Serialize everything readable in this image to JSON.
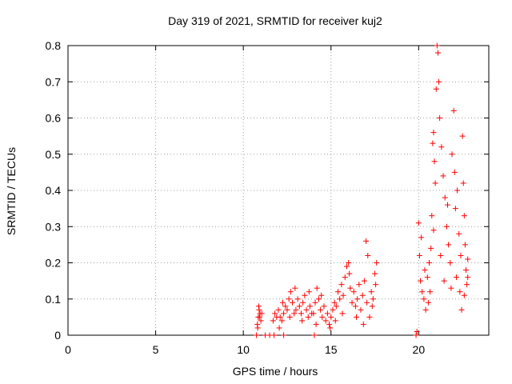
{
  "chart_data": {
    "type": "scatter",
    "title": "Day 319 of 2021, SRMTID for receiver kuj2",
    "xlabel": "GPS time / hours",
    "ylabel": "SRMTID / TECUs",
    "xlim": [
      0,
      24
    ],
    "ylim": [
      0,
      0.8
    ],
    "xticks": [
      0,
      5,
      10,
      15,
      20
    ],
    "yticks": [
      0,
      0.1,
      0.2,
      0.3,
      0.4,
      0.5,
      0.6,
      0.7,
      0.8
    ],
    "xtick_labels": [
      "0",
      "5",
      "10",
      "15",
      "20"
    ],
    "ytick_labels": [
      "0",
      "0.1",
      "0.2",
      "0.3",
      "0.4",
      "0.5",
      "0.6",
      "0.7",
      "0.8"
    ],
    "grid": true,
    "marker": "+",
    "color": "#ff0000",
    "series": [
      {
        "name": "kuj2",
        "points": [
          [
            10.75,
            0
          ],
          [
            11.25,
            0
          ],
          [
            11.5,
            0
          ],
          [
            11.75,
            0
          ],
          [
            12.3,
            0
          ],
          [
            14.05,
            0
          ],
          [
            19.85,
            0
          ],
          [
            10.8,
            0.03
          ],
          [
            10.85,
            0.05
          ],
          [
            10.9,
            0.07
          ],
          [
            10.95,
            0.06
          ],
          [
            11.0,
            0.04
          ],
          [
            10.82,
            0.02
          ],
          [
            10.88,
            0.08
          ],
          [
            10.92,
            0.05
          ],
          [
            11.05,
            0.06
          ],
          [
            11.7,
            0.04
          ],
          [
            11.8,
            0.06
          ],
          [
            11.9,
            0.05
          ],
          [
            12.0,
            0.07
          ],
          [
            12.1,
            0.05
          ],
          [
            12.2,
            0.04
          ],
          [
            12.3,
            0.06
          ],
          [
            12.4,
            0.08
          ],
          [
            12.5,
            0.07
          ],
          [
            12.6,
            0.1
          ],
          [
            12.7,
            0.12
          ],
          [
            12.8,
            0.09
          ],
          [
            12.9,
            0.06
          ],
          [
            13.0,
            0.07
          ],
          [
            13.1,
            0.1
          ],
          [
            13.2,
            0.08
          ],
          [
            13.3,
            0.06
          ],
          [
            13.4,
            0.09
          ],
          [
            13.5,
            0.11
          ],
          [
            13.6,
            0.07
          ],
          [
            13.7,
            0.05
          ],
          [
            13.8,
            0.08
          ],
          [
            13.9,
            0.06
          ],
          [
            12.05,
            0.02
          ],
          [
            12.25,
            0.09
          ],
          [
            12.65,
            0.05
          ],
          [
            12.95,
            0.13
          ],
          [
            13.35,
            0.04
          ],
          [
            13.75,
            0.12
          ],
          [
            14.0,
            0.06
          ],
          [
            14.1,
            0.09
          ],
          [
            14.2,
            0.13
          ],
          [
            14.3,
            0.1
          ],
          [
            14.4,
            0.07
          ],
          [
            14.5,
            0.05
          ],
          [
            14.6,
            0.08
          ],
          [
            14.7,
            0.04
          ],
          [
            14.8,
            0.06
          ],
          [
            14.9,
            0.03
          ],
          [
            15.0,
            0.05
          ],
          [
            15.1,
            0.07
          ],
          [
            15.2,
            0.09
          ],
          [
            15.3,
            0.08
          ],
          [
            15.4,
            0.12
          ],
          [
            15.5,
            0.1
          ],
          [
            15.6,
            0.14
          ],
          [
            15.7,
            0.11
          ],
          [
            15.8,
            0.16
          ],
          [
            15.9,
            0.19
          ],
          [
            16.0,
            0.2
          ],
          [
            16.1,
            0.13
          ],
          [
            16.2,
            0.09
          ],
          [
            16.3,
            0.12
          ],
          [
            16.4,
            0.08
          ],
          [
            16.5,
            0.1
          ],
          [
            16.6,
            0.14
          ],
          [
            16.7,
            0.07
          ],
          [
            16.8,
            0.11
          ],
          [
            16.9,
            0.15
          ],
          [
            17.0,
            0.26
          ],
          [
            17.1,
            0.22
          ],
          [
            17.2,
            0.05
          ],
          [
            17.3,
            0.12
          ],
          [
            17.4,
            0.1
          ],
          [
            17.5,
            0.17
          ],
          [
            17.6,
            0.2
          ],
          [
            14.15,
            0.03
          ],
          [
            14.45,
            0.11
          ],
          [
            14.95,
            0.02
          ],
          [
            15.25,
            0.04
          ],
          [
            15.65,
            0.06
          ],
          [
            16.05,
            0.17
          ],
          [
            16.45,
            0.05
          ],
          [
            16.85,
            0.03
          ],
          [
            17.05,
            0.09
          ],
          [
            17.35,
            0.08
          ],
          [
            17.55,
            0.14
          ],
          [
            19.9,
            0.01
          ],
          [
            20.0,
            0.31
          ],
          [
            20.05,
            0.22
          ],
          [
            20.1,
            0.15
          ],
          [
            20.2,
            0.12
          ],
          [
            20.3,
            0.1
          ],
          [
            20.4,
            0.07
          ],
          [
            20.5,
            0.16
          ],
          [
            20.6,
            0.2
          ],
          [
            20.7,
            0.24
          ],
          [
            20.75,
            0.33
          ],
          [
            20.8,
            0.53
          ],
          [
            20.85,
            0.56
          ],
          [
            20.9,
            0.48
          ],
          [
            20.95,
            0.42
          ],
          [
            21.0,
            0.68
          ],
          [
            21.05,
            0.8
          ],
          [
            21.1,
            0.78
          ],
          [
            21.15,
            0.7
          ],
          [
            21.2,
            0.6
          ],
          [
            21.3,
            0.52
          ],
          [
            21.4,
            0.44
          ],
          [
            21.5,
            0.38
          ],
          [
            21.6,
            0.3
          ],
          [
            21.7,
            0.25
          ],
          [
            21.8,
            0.2
          ],
          [
            21.9,
            0.5
          ],
          [
            22.0,
            0.62
          ],
          [
            22.05,
            0.45
          ],
          [
            22.1,
            0.35
          ],
          [
            22.2,
            0.4
          ],
          [
            22.3,
            0.28
          ],
          [
            22.4,
            0.22
          ],
          [
            22.5,
            0.55
          ],
          [
            22.55,
            0.42
          ],
          [
            22.6,
            0.33
          ],
          [
            22.65,
            0.25
          ],
          [
            22.7,
            0.18
          ],
          [
            22.75,
            0.14
          ],
          [
            22.8,
            0.21
          ],
          [
            20.15,
            0.27
          ],
          [
            20.35,
            0.18
          ],
          [
            20.55,
            0.09
          ],
          [
            20.65,
            0.12
          ],
          [
            20.85,
            0.29
          ],
          [
            21.25,
            0.22
          ],
          [
            21.45,
            0.15
          ],
          [
            21.65,
            0.36
          ],
          [
            21.85,
            0.13
          ],
          [
            22.15,
            0.16
          ],
          [
            22.35,
            0.12
          ],
          [
            22.45,
            0.07
          ],
          [
            22.6,
            0.11
          ],
          [
            22.8,
            0.16
          ]
        ]
      }
    ]
  }
}
